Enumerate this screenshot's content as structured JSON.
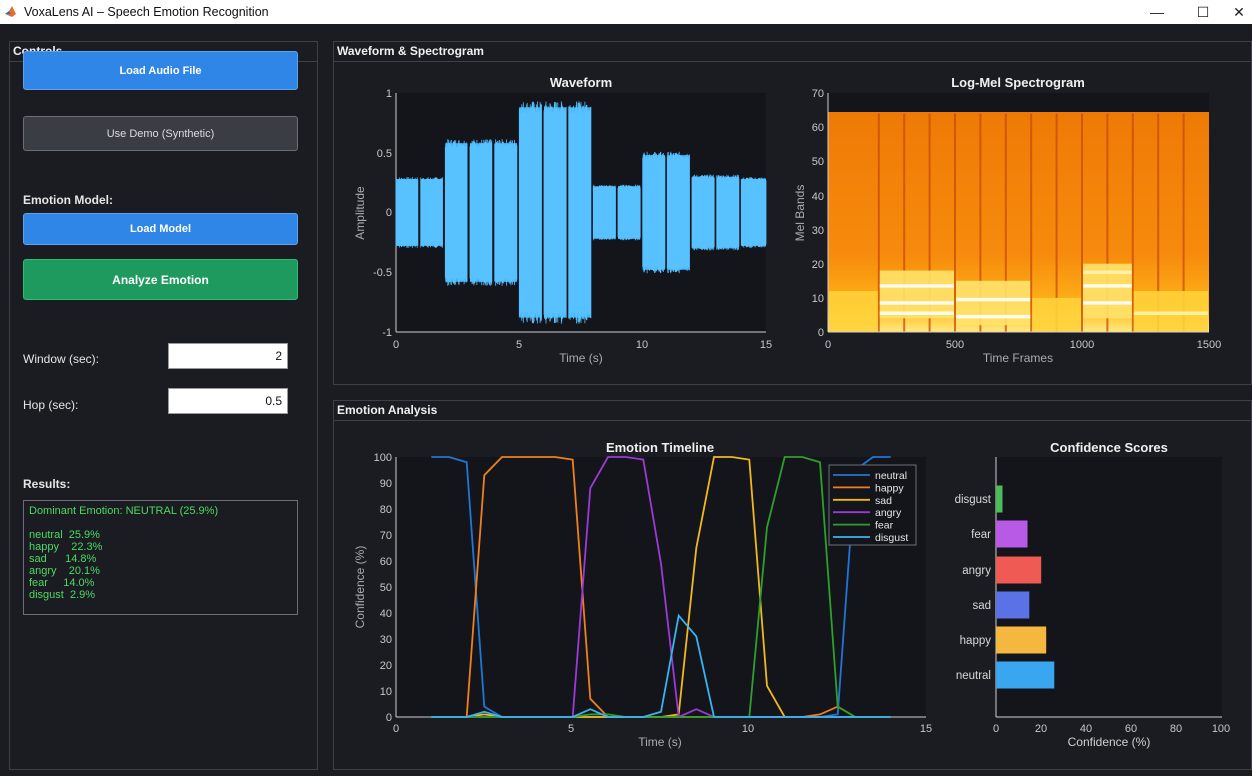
{
  "window": {
    "title": "VoxaLens AI – Speech Emotion Recognition",
    "minimize": "—",
    "maximize": "☐",
    "close": "✕"
  },
  "controls": {
    "title": "Controls",
    "load_audio": "Load Audio File",
    "use_demo": "Use Demo (Synthetic)",
    "model_label": "Emotion Model:",
    "load_model": "Load Model",
    "analyze": "Analyze Emotion",
    "window_label": "Window (sec):",
    "window_value": "2",
    "hop_label": "Hop (sec):",
    "hop_value": "0.5",
    "results_label": "Results:",
    "results_lines": [
      "Dominant Emotion: NEUTRAL (25.9%)",
      "",
      "neutral  25.9%",
      "happy    22.3%",
      "sad      14.8%",
      "angry    20.1%",
      "fear     14.0%",
      "disgust  2.9%"
    ]
  },
  "waveform_panel": {
    "title": "Waveform & Spectrogram",
    "waveform": {
      "title": "Waveform",
      "xlabel": "Time (s)",
      "ylabel": "Amplitude",
      "xticks": [
        "0",
        "5",
        "10",
        "15"
      ],
      "yticks": [
        "1",
        "0.5",
        "0",
        "-0.5",
        "-1"
      ]
    },
    "spectrogram": {
      "title": "Log-Mel Spectrogram",
      "xlabel": "Time Frames",
      "ylabel": "Mel Bands",
      "xticks": [
        "0",
        "500",
        "1000",
        "1500"
      ],
      "yticks": [
        "70",
        "60",
        "50",
        "40",
        "30",
        "20",
        "10",
        "0"
      ]
    }
  },
  "emotion_panel": {
    "title": "Emotion Analysis",
    "timeline": {
      "title": "Emotion Timeline",
      "xlabel": "Time (s)",
      "ylabel": "Confidence (%)",
      "xticks": [
        "0",
        "5",
        "10",
        "15"
      ],
      "yticks": [
        "100",
        "90",
        "80",
        "70",
        "60",
        "50",
        "40",
        "30",
        "20",
        "10",
        "0"
      ]
    },
    "confidence": {
      "title": "Confidence Scores",
      "xlabel": "Confidence (%)",
      "xticks": [
        "0",
        "20",
        "40",
        "60",
        "80",
        "100"
      ]
    }
  },
  "colors": {
    "neutral": "#1f77d4",
    "happy": "#f07f1e",
    "sad": "#f2b81b",
    "angry": "#9b3ad6",
    "fear": "#2ca02c",
    "disgust": "#38b4ef",
    "bar_neutral": "#3aa6f0",
    "bar_happy": "#f4b740",
    "bar_sad": "#5a72e6",
    "bar_angry": "#ef5a54",
    "bar_fear": "#b85ae6",
    "bar_disgust": "#4cbb5a"
  },
  "chart_data": [
    {
      "type": "bar",
      "title": "Confidence Scores",
      "xlabel": "Confidence (%)",
      "ylabel": "",
      "orientation": "horizontal",
      "categories": [
        "neutral",
        "happy",
        "sad",
        "angry",
        "fear",
        "disgust"
      ],
      "values": [
        25.9,
        22.3,
        14.8,
        20.1,
        14.0,
        2.9
      ],
      "xlim": [
        0,
        100
      ]
    },
    {
      "type": "line",
      "title": "Emotion Timeline",
      "xlabel": "Time (s)",
      "ylabel": "Confidence (%)",
      "xlim": [
        0,
        15
      ],
      "ylim": [
        0,
        100
      ],
      "legend": "top-right",
      "x": [
        1,
        1.5,
        2,
        2.5,
        3,
        3.5,
        4,
        4.5,
        5,
        5.5,
        6,
        6.5,
        7,
        7.5,
        8,
        8.5,
        9,
        9.5,
        10,
        10.5,
        11,
        11.5,
        12,
        12.5,
        13,
        13.5,
        14
      ],
      "series": [
        {
          "name": "neutral",
          "values": [
            100,
            100,
            98,
            4,
            0,
            0,
            0,
            0,
            0,
            0,
            0,
            0,
            0,
            0,
            0,
            0,
            0,
            0,
            0,
            0,
            0,
            0,
            0,
            1,
            95,
            100,
            100
          ]
        },
        {
          "name": "happy",
          "values": [
            0,
            0,
            0,
            93,
            100,
            100,
            100,
            100,
            99,
            7,
            0,
            0,
            0,
            0,
            0,
            0,
            0,
            0,
            0,
            0,
            0,
            0,
            1,
            4,
            0,
            0,
            0
          ]
        },
        {
          "name": "sad",
          "values": [
            0,
            0,
            0,
            1,
            0,
            0,
            0,
            0,
            0,
            0,
            0,
            0,
            0,
            0,
            1,
            65,
            100,
            100,
            99,
            12,
            0,
            0,
            0,
            0,
            0,
            0,
            0
          ]
        },
        {
          "name": "angry",
          "values": [
            0,
            0,
            0,
            0,
            0,
            0,
            0,
            0,
            0,
            88,
            100,
            100,
            99,
            59,
            0,
            3,
            0,
            0,
            0,
            0,
            0,
            0,
            0,
            0,
            0,
            0,
            0
          ]
        },
        {
          "name": "fear",
          "values": [
            0,
            0,
            0,
            0,
            0,
            0,
            0,
            0,
            0,
            1,
            1,
            0,
            0,
            0,
            0,
            0,
            0,
            0,
            0,
            73,
            100,
            100,
            98,
            4,
            0,
            0,
            0
          ]
        },
        {
          "name": "disgust",
          "values": [
            0,
            0,
            0,
            2,
            0,
            0,
            0,
            0,
            0,
            3,
            0,
            0,
            0,
            2,
            39,
            31,
            0,
            0,
            0,
            0,
            0,
            0,
            0,
            0,
            0,
            0,
            0
          ]
        }
      ]
    }
  ]
}
